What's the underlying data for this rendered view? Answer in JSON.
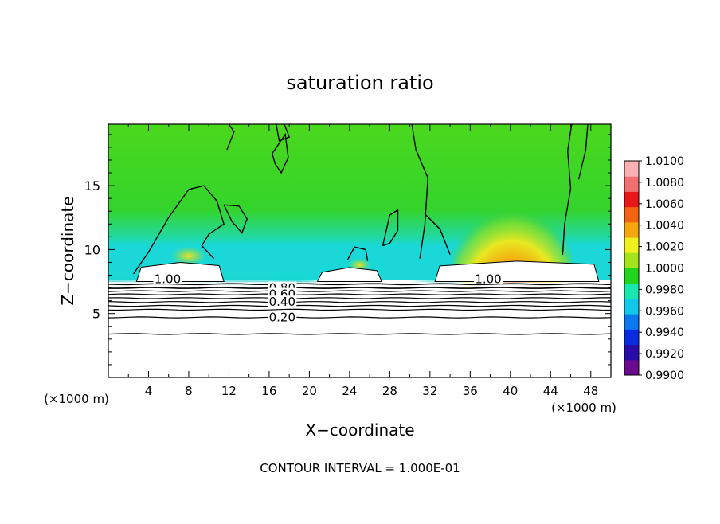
{
  "chart_data": {
    "type": "heatmap",
    "title": "saturation ratio",
    "xlabel": "X−coordinate",
    "ylabel": "Z−coordinate",
    "x_unit_left": "(×1000 m)",
    "x_unit_right": "(×1000 m)",
    "xlim": [
      0,
      50
    ],
    "ylim": [
      0,
      19.8
    ],
    "x_ticks": [
      4,
      8,
      12,
      16,
      20,
      24,
      28,
      32,
      36,
      40,
      44,
      48
    ],
    "y_ticks": [
      5,
      10,
      15
    ],
    "colorbar": {
      "ticks": [
        "1.0100",
        "1.0080",
        "1.0060",
        "1.0040",
        "1.0020",
        "1.0000",
        "0.9980",
        "0.9960",
        "0.9940",
        "0.9920",
        "0.9900"
      ],
      "range": [
        0.99,
        1.01
      ],
      "colors": [
        "#6a0a8c",
        "#2a0ca8",
        "#0a2ce0",
        "#0a78f0",
        "#10c8e8",
        "#18e8b0",
        "#22d41e",
        "#a4e41a",
        "#f0f01e",
        "#f4a80e",
        "#f26410",
        "#e81818",
        "#f07070",
        "#f8b0b0"
      ]
    },
    "contour_labels": [
      {
        "text": "1.00",
        "x": 5.9,
        "z": 7.7
      },
      {
        "text": "1.00",
        "x": 37.8,
        "z": 7.7
      },
      {
        "text": "0.80",
        "x": 17.3,
        "z": 7.0
      },
      {
        "text": "0.60",
        "x": 17.3,
        "z": 6.5
      },
      {
        "text": "0.40",
        "x": 17.3,
        "z": 5.9
      },
      {
        "text": "0.20",
        "x": 17.3,
        "z": 4.7
      }
    ],
    "contour_levels_z": [
      7.3,
      7.0,
      6.75,
      6.5,
      6.2,
      5.9,
      5.6,
      5.3,
      4.7,
      3.4
    ],
    "cloud_regions": [
      {
        "x0": 2.8,
        "x1": 11.5,
        "z_top": 9.0
      },
      {
        "x0": 20.8,
        "x1": 27.2,
        "z_top": 8.6
      },
      {
        "x0": 32.5,
        "x1": 48.8,
        "z_top": 9.1
      }
    ]
  },
  "footer": {
    "contour_interval": "CONTOUR INTERVAL =  1.000E-01"
  }
}
